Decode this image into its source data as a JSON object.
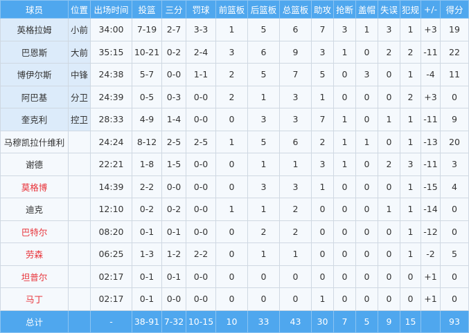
{
  "columns": [
    "球员",
    "位置",
    "出场时间",
    "投篮",
    "三分",
    "罚球",
    "前篮板",
    "后篮板",
    "总篮板",
    "助攻",
    "抢断",
    "盖帽",
    "失误",
    "犯规",
    "+/-",
    "得分"
  ],
  "rows": [
    {
      "name": "英格拉姆",
      "pos": "小前",
      "starter": true,
      "red": false,
      "stats": [
        "34:00",
        "7-19",
        "2-7",
        "3-3",
        "1",
        "5",
        "6",
        "7",
        "3",
        "1",
        "3",
        "1",
        "+3",
        "19"
      ]
    },
    {
      "name": "巴恩斯",
      "pos": "大前",
      "starter": true,
      "red": false,
      "stats": [
        "35:15",
        "10-21",
        "0-2",
        "2-4",
        "3",
        "6",
        "9",
        "3",
        "1",
        "0",
        "2",
        "2",
        "-11",
        "22"
      ]
    },
    {
      "name": "博伊尔斯",
      "pos": "中锋",
      "starter": true,
      "red": false,
      "stats": [
        "24:38",
        "5-7",
        "0-0",
        "1-1",
        "2",
        "5",
        "7",
        "5",
        "0",
        "3",
        "0",
        "1",
        "-4",
        "11"
      ]
    },
    {
      "name": "阿巴基",
      "pos": "分卫",
      "starter": true,
      "red": false,
      "stats": [
        "24:39",
        "0-5",
        "0-3",
        "0-0",
        "2",
        "1",
        "3",
        "1",
        "0",
        "0",
        "0",
        "2",
        "+3",
        "0"
      ]
    },
    {
      "name": "奎克利",
      "pos": "控卫",
      "starter": true,
      "red": false,
      "stats": [
        "28:33",
        "4-9",
        "1-4",
        "0-0",
        "0",
        "3",
        "3",
        "7",
        "1",
        "0",
        "1",
        "1",
        "-11",
        "9"
      ]
    },
    {
      "name": "马穆凯拉什维利",
      "pos": "",
      "starter": false,
      "red": false,
      "stats": [
        "24:24",
        "8-12",
        "2-5",
        "2-5",
        "1",
        "5",
        "6",
        "2",
        "1",
        "1",
        "0",
        "1",
        "-13",
        "20"
      ]
    },
    {
      "name": "谢德",
      "pos": "",
      "starter": false,
      "red": false,
      "stats": [
        "22:21",
        "1-8",
        "1-5",
        "0-0",
        "0",
        "1",
        "1",
        "3",
        "1",
        "0",
        "2",
        "3",
        "-11",
        "3"
      ]
    },
    {
      "name": "莫格博",
      "pos": "",
      "starter": false,
      "red": true,
      "stats": [
        "14:39",
        "2-2",
        "0-0",
        "0-0",
        "0",
        "3",
        "3",
        "1",
        "0",
        "0",
        "0",
        "1",
        "-15",
        "4"
      ]
    },
    {
      "name": "迪克",
      "pos": "",
      "starter": false,
      "red": false,
      "stats": [
        "12:10",
        "0-2",
        "0-2",
        "0-0",
        "1",
        "1",
        "2",
        "0",
        "0",
        "0",
        "1",
        "1",
        "-14",
        "0"
      ]
    },
    {
      "name": "巴特尔",
      "pos": "",
      "starter": false,
      "red": true,
      "stats": [
        "08:20",
        "0-1",
        "0-1",
        "0-0",
        "0",
        "2",
        "2",
        "0",
        "0",
        "0",
        "0",
        "1",
        "-12",
        "0"
      ]
    },
    {
      "name": "劳森",
      "pos": "",
      "starter": false,
      "red": true,
      "stats": [
        "06:25",
        "1-3",
        "1-2",
        "2-2",
        "0",
        "1",
        "1",
        "0",
        "0",
        "0",
        "0",
        "1",
        "-2",
        "5"
      ]
    },
    {
      "name": "坦普尔",
      "pos": "",
      "starter": false,
      "red": true,
      "stats": [
        "02:17",
        "0-1",
        "0-1",
        "0-0",
        "0",
        "0",
        "0",
        "0",
        "0",
        "0",
        "0",
        "0",
        "+1",
        "0"
      ]
    },
    {
      "name": "马丁",
      "pos": "",
      "starter": false,
      "red": true,
      "stats": [
        "02:17",
        "0-1",
        "0-0",
        "0-0",
        "0",
        "0",
        "0",
        "1",
        "0",
        "0",
        "0",
        "0",
        "+1",
        "0"
      ]
    }
  ],
  "total": {
    "label": "总计",
    "pos": "",
    "stats": [
      "-",
      "38-91",
      "7-32",
      "10-15",
      "10",
      "33",
      "43",
      "30",
      "7",
      "5",
      "9",
      "15",
      "",
      "93"
    ]
  },
  "colors": {
    "header": "#4fa7ee",
    "starter_bg": "#dcebfa",
    "cell_bg": "#f5f9fd",
    "bench_red": "#e8343a"
  }
}
